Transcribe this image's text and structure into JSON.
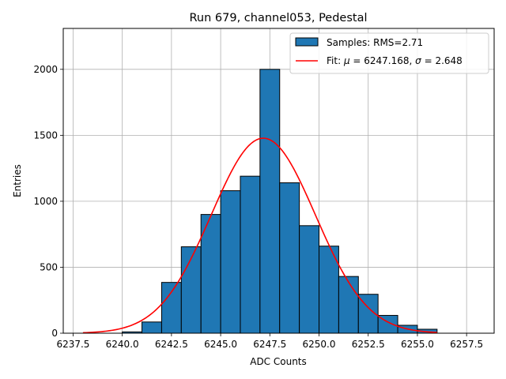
{
  "chart_data": {
    "type": "bar",
    "title": "Run 679, channel053, Pedestal",
    "xlabel": "ADC Counts",
    "ylabel": "Entries",
    "xlim": [
      6237.0,
      6258.9
    ],
    "ylim": [
      0,
      2310
    ],
    "xticks": [
      6237.5,
      6240.0,
      6242.5,
      6245.0,
      6247.5,
      6250.0,
      6252.5,
      6255.0,
      6257.5
    ],
    "xtick_labels": [
      "6237.5",
      "6240.0",
      "6242.5",
      "6245.0",
      "6247.5",
      "6250.0",
      "6252.5",
      "6255.0",
      "6257.5"
    ],
    "yticks": [
      0,
      500,
      1000,
      1500,
      2000
    ],
    "ytick_labels": [
      "0",
      "500",
      "1000",
      "1500",
      "2000"
    ],
    "grid": true,
    "legend_position": "top-right",
    "bin_edges": [
      6240,
      6241,
      6242,
      6243,
      6244,
      6245,
      6246,
      6247,
      6248,
      6249,
      6250,
      6251,
      6252,
      6253,
      6254,
      6255,
      6256
    ],
    "series": [
      {
        "name": "Samples: RMS=2.71",
        "kind": "histogram",
        "color": "#1f77b4",
        "edgecolor": "#000000",
        "values": [
          10,
          85,
          385,
          655,
          900,
          1080,
          1190,
          2000,
          1140,
          815,
          660,
          430,
          295,
          135,
          60,
          30
        ]
      },
      {
        "name_prefix": "Fit: ",
        "name_mu": "μ",
        "name_mid": " = 6247.168, ",
        "name_sigma": "σ",
        "name_suffix": " = 2.648",
        "kind": "gaussian-fit",
        "color": "#ff0000",
        "mu": 6247.168,
        "sigma": 2.648,
        "amplitude": 1478,
        "x_range": [
          6238,
          6256
        ]
      }
    ]
  }
}
